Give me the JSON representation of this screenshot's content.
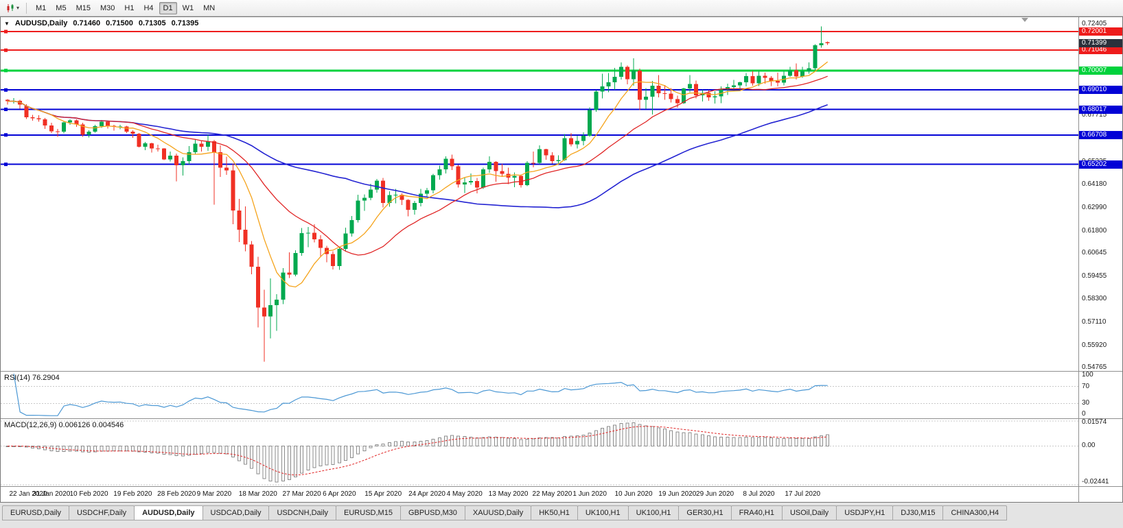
{
  "toolbar": {
    "timeframes": [
      {
        "label": "M1",
        "active": false
      },
      {
        "label": "M5",
        "active": false
      },
      {
        "label": "M15",
        "active": false
      },
      {
        "label": "M30",
        "active": false
      },
      {
        "label": "H1",
        "active": false
      },
      {
        "label": "H4",
        "active": false
      },
      {
        "label": "D1",
        "active": true
      },
      {
        "label": "W1",
        "active": false
      },
      {
        "label": "MN",
        "active": false
      }
    ]
  },
  "icons": {
    "one_click": "▼",
    "caret": "▾"
  },
  "chart": {
    "quote": {
      "symbol": "AUDUSD,Daily",
      "open": "0.71460",
      "high": "0.71500",
      "low": "0.71305",
      "close": "0.71395"
    },
    "price_scale": {
      "max": 0.7274,
      "min": 0.5462,
      "ticks": [
        {
          "v": 0.72405,
          "label": "0.72405"
        },
        {
          "v": 0.67715,
          "label": "0.67715"
        },
        {
          "v": 0.65335,
          "label": "0.65335"
        },
        {
          "v": 0.6418,
          "label": "0.64180"
        },
        {
          "v": 0.6299,
          "label": "0.62990"
        },
        {
          "v": 0.618,
          "label": "0.61800"
        },
        {
          "v": 0.60645,
          "label": "0.60645"
        },
        {
          "v": 0.59455,
          "label": "0.59455"
        },
        {
          "v": 0.583,
          "label": "0.58300"
        },
        {
          "v": 0.5711,
          "label": "0.57110"
        },
        {
          "v": 0.5592,
          "label": "0.55920"
        },
        {
          "v": 0.54765,
          "label": "0.54765"
        }
      ]
    },
    "levels": {
      "red": [
        {
          "price": 0.72001,
          "label": "0.72001"
        },
        {
          "price": 0.71046,
          "label": "0.71046"
        }
      ],
      "green": [
        {
          "price": 0.70007,
          "label": "0.70007"
        }
      ],
      "blue": [
        {
          "price": 0.6901,
          "label": "0.69010"
        },
        {
          "price": 0.68017,
          "label": "0.68017"
        },
        {
          "price": 0.66708,
          "label": "0.66708"
        },
        {
          "price": 0.65202,
          "label": "0.65202"
        }
      ]
    },
    "current_price": {
      "value": 0.71399,
      "label": "0.71399"
    },
    "ma": {
      "fast": 8,
      "mid": 21,
      "slow": 55
    },
    "x_ticks": [
      {
        "label": "22 Jan 2020",
        "index": 0
      },
      {
        "label": "31 Jan 2020",
        "index": 7
      },
      {
        "label": "10 Feb 2020",
        "index": 13
      },
      {
        "label": "19 Feb 2020",
        "index": 20
      },
      {
        "label": "28 Feb 2020",
        "index": 27
      },
      {
        "label": "9 Mar 2020",
        "index": 33
      },
      {
        "label": "18 Mar 2020",
        "index": 40
      },
      {
        "label": "27 Mar 2020",
        "index": 47
      },
      {
        "label": "6 Apr 2020",
        "index": 53
      },
      {
        "label": "15 Apr 2020",
        "index": 60
      },
      {
        "label": "24 Apr 2020",
        "index": 67
      },
      {
        "label": "4 May 2020",
        "index": 73
      },
      {
        "label": "13 May 2020",
        "index": 80
      },
      {
        "label": "22 May 2020",
        "index": 87
      },
      {
        "label": "1 Jun 2020",
        "index": 93
      },
      {
        "label": "10 Jun 2020",
        "index": 100
      },
      {
        "label": "19 Jun 2020",
        "index": 107
      },
      {
        "label": "29 Jun 2020",
        "index": 113
      },
      {
        "label": "8 Jul 2020",
        "index": 120
      },
      {
        "label": "17 Jul 2020",
        "index": 127
      }
    ],
    "candles": [
      [
        0.685,
        0.6855,
        0.6827,
        0.6843
      ],
      [
        0.6843,
        0.686,
        0.6832,
        0.6845
      ],
      [
        0.6845,
        0.685,
        0.6805,
        0.6827
      ],
      [
        0.682,
        0.6828,
        0.6753,
        0.6761
      ],
      [
        0.6761,
        0.6774,
        0.6744,
        0.6756
      ],
      [
        0.6756,
        0.6772,
        0.6738,
        0.6751
      ],
      [
        0.6751,
        0.6757,
        0.6701,
        0.6719
      ],
      [
        0.6719,
        0.6733,
        0.6681,
        0.669
      ],
      [
        0.669,
        0.6702,
        0.6662,
        0.6687
      ],
      [
        0.6687,
        0.6739,
        0.6678,
        0.6735
      ],
      [
        0.6735,
        0.675,
        0.6722,
        0.6745
      ],
      [
        0.6745,
        0.675,
        0.6712,
        0.6725
      ],
      [
        0.6725,
        0.6733,
        0.6662,
        0.6671
      ],
      [
        0.6671,
        0.6694,
        0.6657,
        0.6687
      ],
      [
        0.6687,
        0.6722,
        0.6683,
        0.6716
      ],
      [
        0.6716,
        0.6748,
        0.6707,
        0.6738
      ],
      [
        0.6738,
        0.674,
        0.6704,
        0.6718
      ],
      [
        0.6718,
        0.6723,
        0.6693,
        0.6712
      ],
      [
        0.6712,
        0.6723,
        0.67,
        0.6714
      ],
      [
        0.6714,
        0.6718,
        0.668,
        0.6687
      ],
      [
        0.6687,
        0.6694,
        0.6656,
        0.6677
      ],
      [
        0.6677,
        0.668,
        0.6606,
        0.6611
      ],
      [
        0.6611,
        0.6635,
        0.6592,
        0.6627
      ],
      [
        0.6627,
        0.6632,
        0.658,
        0.6602
      ],
      [
        0.6602,
        0.662,
        0.6585,
        0.6601
      ],
      [
        0.6601,
        0.6604,
        0.6542,
        0.6546
      ],
      [
        0.6546,
        0.6585,
        0.6535,
        0.6565
      ],
      [
        0.6565,
        0.6576,
        0.6433,
        0.6515
      ],
      [
        0.6515,
        0.6556,
        0.6463,
        0.6536
      ],
      [
        0.6536,
        0.6613,
        0.652,
        0.6583
      ],
      [
        0.6583,
        0.6646,
        0.657,
        0.6626
      ],
      [
        0.6626,
        0.664,
        0.6585,
        0.661
      ],
      [
        0.661,
        0.6671,
        0.659,
        0.6639
      ],
      [
        0.6639,
        0.6646,
        0.6313,
        0.6583
      ],
      [
        0.6583,
        0.6617,
        0.6455,
        0.6503
      ],
      [
        0.6503,
        0.656,
        0.6466,
        0.6489
      ],
      [
        0.6489,
        0.6525,
        0.6214,
        0.6284
      ],
      [
        0.6284,
        0.6343,
        0.6123,
        0.6186
      ],
      [
        0.6186,
        0.6305,
        0.6075,
        0.611
      ],
      [
        0.611,
        0.6128,
        0.5958,
        0.5996
      ],
      [
        0.5996,
        0.6047,
        0.5685,
        0.5786
      ],
      [
        0.5786,
        0.5878,
        0.551,
        0.5742
      ],
      [
        0.5742,
        0.5936,
        0.5628,
        0.5799
      ],
      [
        0.5799,
        0.5856,
        0.5668,
        0.5827
      ],
      [
        0.5827,
        0.5988,
        0.5805,
        0.5966
      ],
      [
        0.5966,
        0.607,
        0.5937,
        0.5955
      ],
      [
        0.5955,
        0.608,
        0.5946,
        0.6066
      ],
      [
        0.6066,
        0.6194,
        0.6052,
        0.6167
      ],
      [
        0.6167,
        0.62,
        0.6095,
        0.6169
      ],
      [
        0.6169,
        0.6213,
        0.612,
        0.6137
      ],
      [
        0.6137,
        0.6157,
        0.6049,
        0.6093
      ],
      [
        0.6093,
        0.6103,
        0.6019,
        0.6061
      ],
      [
        0.6061,
        0.6074,
        0.5982,
        0.5999
      ],
      [
        0.5999,
        0.6097,
        0.598,
        0.6087
      ],
      [
        0.6087,
        0.6196,
        0.6075,
        0.6166
      ],
      [
        0.6166,
        0.6255,
        0.615,
        0.6234
      ],
      [
        0.6234,
        0.6364,
        0.6222,
        0.6335
      ],
      [
        0.6335,
        0.6366,
        0.6282,
        0.6349
      ],
      [
        0.6349,
        0.642,
        0.6336,
        0.639
      ],
      [
        0.639,
        0.6445,
        0.6375,
        0.6436
      ],
      [
        0.6436,
        0.6451,
        0.63,
        0.6323
      ],
      [
        0.6323,
        0.6382,
        0.6303,
        0.6363
      ],
      [
        0.6363,
        0.6395,
        0.632,
        0.6364
      ],
      [
        0.6364,
        0.6371,
        0.6312,
        0.6339
      ],
      [
        0.6339,
        0.6341,
        0.6253,
        0.6287
      ],
      [
        0.6287,
        0.6333,
        0.6263,
        0.6323
      ],
      [
        0.6323,
        0.6395,
        0.6305,
        0.6369
      ],
      [
        0.6369,
        0.64,
        0.6355,
        0.6388
      ],
      [
        0.6388,
        0.6472,
        0.6372,
        0.6465
      ],
      [
        0.6465,
        0.6514,
        0.6441,
        0.6494
      ],
      [
        0.6494,
        0.6562,
        0.6474,
        0.6549
      ],
      [
        0.6549,
        0.657,
        0.6491,
        0.651
      ],
      [
        0.651,
        0.6518,
        0.6402,
        0.6418
      ],
      [
        0.6418,
        0.6453,
        0.6373,
        0.6428
      ],
      [
        0.6428,
        0.6473,
        0.6415,
        0.6435
      ],
      [
        0.6435,
        0.645,
        0.6372,
        0.6402
      ],
      [
        0.6402,
        0.6503,
        0.6395,
        0.6494
      ],
      [
        0.6494,
        0.6561,
        0.6477,
        0.6533
      ],
      [
        0.6533,
        0.6536,
        0.6432,
        0.6486
      ],
      [
        0.6486,
        0.6523,
        0.6457,
        0.6471
      ],
      [
        0.6471,
        0.6504,
        0.6419,
        0.6452
      ],
      [
        0.6452,
        0.6478,
        0.6403,
        0.6461
      ],
      [
        0.6461,
        0.6468,
        0.6402,
        0.6414
      ],
      [
        0.6414,
        0.6536,
        0.6409,
        0.6528
      ],
      [
        0.6528,
        0.6585,
        0.6505,
        0.6527
      ],
      [
        0.6527,
        0.6617,
        0.652,
        0.6598
      ],
      [
        0.6598,
        0.66,
        0.6543,
        0.6566
      ],
      [
        0.6566,
        0.6582,
        0.6525,
        0.6536
      ],
      [
        0.6536,
        0.6566,
        0.6522,
        0.6541
      ],
      [
        0.6541,
        0.6676,
        0.6539,
        0.6654
      ],
      [
        0.6654,
        0.668,
        0.6612,
        0.6623
      ],
      [
        0.6623,
        0.6666,
        0.6602,
        0.664
      ],
      [
        0.664,
        0.6684,
        0.6618,
        0.6667
      ],
      [
        0.6667,
        0.6813,
        0.6662,
        0.6798
      ],
      [
        0.6798,
        0.6899,
        0.679,
        0.6893
      ],
      [
        0.6893,
        0.6984,
        0.6858,
        0.692
      ],
      [
        0.692,
        0.6988,
        0.689,
        0.694
      ],
      [
        0.694,
        0.7014,
        0.6902,
        0.6968
      ],
      [
        0.6968,
        0.7043,
        0.6955,
        0.7019
      ],
      [
        0.7019,
        0.7027,
        0.693,
        0.6956
      ],
      [
        0.6956,
        0.7063,
        0.6922,
        0.7
      ],
      [
        0.7,
        0.701,
        0.6799,
        0.6851
      ],
      [
        0.6851,
        0.691,
        0.6804,
        0.6867
      ],
      [
        0.6867,
        0.6948,
        0.6776,
        0.6922
      ],
      [
        0.6922,
        0.6977,
        0.6864,
        0.6885
      ],
      [
        0.6885,
        0.6926,
        0.685,
        0.6882
      ],
      [
        0.6882,
        0.691,
        0.6837,
        0.6854
      ],
      [
        0.6854,
        0.6872,
        0.681,
        0.6834
      ],
      [
        0.6834,
        0.6912,
        0.6829,
        0.6908
      ],
      [
        0.6908,
        0.6977,
        0.689,
        0.6931
      ],
      [
        0.6931,
        0.695,
        0.6858,
        0.6873
      ],
      [
        0.6873,
        0.6902,
        0.6842,
        0.6886
      ],
      [
        0.6886,
        0.69,
        0.6845,
        0.6864
      ],
      [
        0.6864,
        0.6895,
        0.6832,
        0.6868
      ],
      [
        0.6868,
        0.692,
        0.6833,
        0.6903
      ],
      [
        0.6903,
        0.6934,
        0.6875,
        0.6916
      ],
      [
        0.6916,
        0.6952,
        0.6902,
        0.6924
      ],
      [
        0.6924,
        0.6944,
        0.6901,
        0.6941
      ],
      [
        0.6941,
        0.6988,
        0.692,
        0.6972
      ],
      [
        0.6972,
        0.6998,
        0.6922,
        0.6935
      ],
      [
        0.6935,
        0.6999,
        0.6921,
        0.6974
      ],
      [
        0.6974,
        0.6989,
        0.6934,
        0.6963
      ],
      [
        0.6963,
        0.6972,
        0.6921,
        0.6948
      ],
      [
        0.6948,
        0.699,
        0.692,
        0.6938
      ],
      [
        0.6938,
        0.6998,
        0.6925,
        0.6973
      ],
      [
        0.6973,
        0.7019,
        0.6968,
        0.7002
      ],
      [
        0.7002,
        0.7037,
        0.6955,
        0.697
      ],
      [
        0.697,
        0.7019,
        0.6963,
        0.6996
      ],
      [
        0.6996,
        0.7043,
        0.6985,
        0.7012
      ],
      [
        0.7012,
        0.7136,
        0.7002,
        0.713
      ],
      [
        0.713,
        0.7227,
        0.7118,
        0.7141
      ],
      [
        0.7146,
        0.715,
        0.7131,
        0.714
      ]
    ]
  },
  "rsi": {
    "title": "RSI(14) 76.2904",
    "period": 14,
    "upper": 70,
    "lower": 30,
    "scale": [
      {
        "v": 100,
        "label": "100"
      },
      {
        "v": 70,
        "label": "70"
      },
      {
        "v": 30,
        "label": "30"
      },
      {
        "v": 0,
        "label": "0"
      }
    ]
  },
  "macd": {
    "title": "MACD(12,26,9) 0.006126 0.004546",
    "max": 0.017,
    "min": -0.0252,
    "scale": [
      {
        "v": 0.01574,
        "label": "0.01574"
      },
      {
        "v": 0,
        "label": "0.00"
      },
      {
        "v": -0.02441,
        "label": "-0.02441"
      }
    ]
  },
  "tabs": [
    {
      "label": "EURUSD,Daily",
      "active": false
    },
    {
      "label": "USDCHF,Daily",
      "active": false
    },
    {
      "label": "AUDUSD,Daily",
      "active": true
    },
    {
      "label": "USDCAD,Daily",
      "active": false
    },
    {
      "label": "USDCNH,Daily",
      "active": false
    },
    {
      "label": "EURUSD,M15",
      "active": false
    },
    {
      "label": "GBPUSD,M30",
      "active": false
    },
    {
      "label": "XAUUSD,Daily",
      "active": false
    },
    {
      "label": "HK50,H1",
      "active": false
    },
    {
      "label": "UK100,H1",
      "active": false
    },
    {
      "label": "UK100,H1",
      "active": false
    },
    {
      "label": "GER30,H1",
      "active": false
    },
    {
      "label": "FRA40,H1",
      "active": false
    },
    {
      "label": "USOil,Daily",
      "active": false
    },
    {
      "label": "USDJPY,H1",
      "active": false
    },
    {
      "label": "DJ30,M15",
      "active": false
    },
    {
      "label": "CHINA300,H4",
      "active": false
    }
  ],
  "colors": {
    "bull": "#00a94f",
    "bear": "#f03024",
    "ma_fast": "#f5a31a",
    "ma_mid": "#e02424",
    "ma_slow": "#2424d2",
    "level_red": "#ee1c1c",
    "level_green": "#00d23c",
    "level_blue": "#0202d6",
    "current_badge": "#2b313c",
    "rsi_line": "#4a97d4",
    "macd_signal": "#e02424",
    "macd_hist": "#8a8a8a"
  }
}
